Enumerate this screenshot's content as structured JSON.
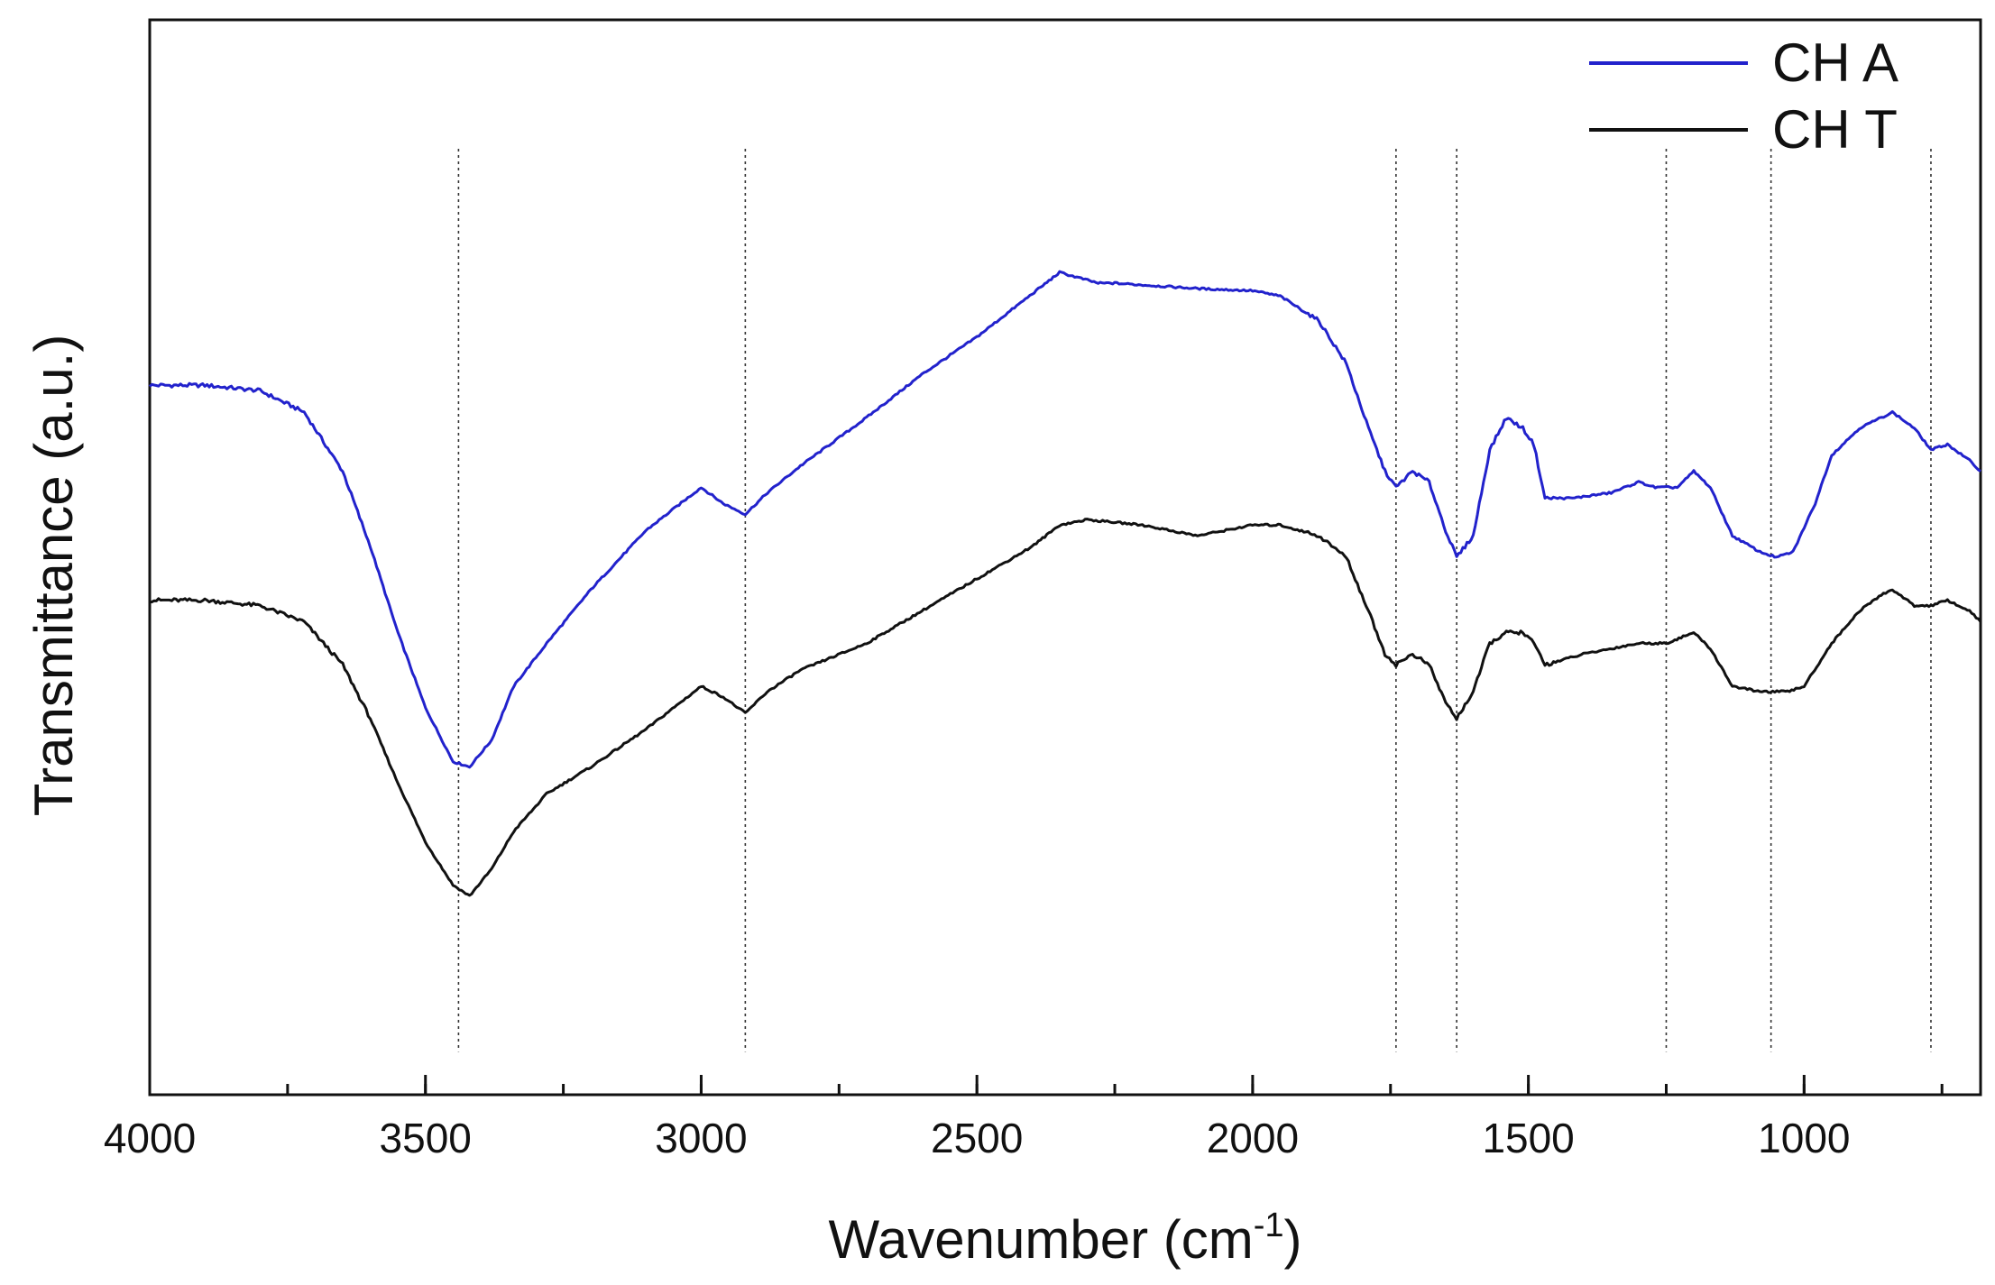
{
  "chart_data": {
    "type": "line",
    "title": "",
    "xlabel": "Wavenumber (cm",
    "xlabel_superscript": "-1",
    "xlabel_suffix": ")",
    "ylabel": "Transmittance (a.u.)",
    "xlim": [
      4000,
      680
    ],
    "ylim": [
      0,
      100
    ],
    "x_reversed": true,
    "grid": false,
    "legend_position": "top-right",
    "x_ticks": [
      {
        "value": 4000,
        "label": "4000"
      },
      {
        "value": 3500,
        "label": "3500"
      },
      {
        "value": 3000,
        "label": "3000"
      },
      {
        "value": 2500,
        "label": "2500"
      },
      {
        "value": 2000,
        "label": "2000"
      },
      {
        "value": 1500,
        "label": "1500"
      },
      {
        "value": 1000,
        "label": "1000"
      }
    ],
    "x_minor_step": 250,
    "peak_markers": [
      3440,
      2920,
      1740,
      1630,
      1250,
      1060,
      770
    ],
    "series": [
      {
        "name": "CH A",
        "color": "#2222cc",
        "points": [
          [
            4000,
            66
          ],
          [
            3900,
            66
          ],
          [
            3800,
            65.5
          ],
          [
            3720,
            63.5
          ],
          [
            3650,
            58
          ],
          [
            3600,
            51
          ],
          [
            3550,
            43
          ],
          [
            3500,
            36
          ],
          [
            3450,
            31
          ],
          [
            3420,
            30.5
          ],
          [
            3380,
            33
          ],
          [
            3340,
            38
          ],
          [
            3280,
            42
          ],
          [
            3200,
            47
          ],
          [
            3100,
            52.5
          ],
          [
            3000,
            56.5
          ],
          [
            2960,
            55
          ],
          [
            2920,
            54
          ],
          [
            2880,
            56
          ],
          [
            2820,
            58.5
          ],
          [
            2700,
            63
          ],
          [
            2600,
            67
          ],
          [
            2500,
            70.5
          ],
          [
            2400,
            74.5
          ],
          [
            2350,
            76.5
          ],
          [
            2280,
            75.5
          ],
          [
            2250,
            75.5
          ],
          [
            2100,
            75
          ],
          [
            2000,
            74.8
          ],
          [
            1950,
            74.3
          ],
          [
            1880,
            72
          ],
          [
            1830,
            68
          ],
          [
            1790,
            62
          ],
          [
            1760,
            58
          ],
          [
            1740,
            56.5
          ],
          [
            1710,
            58
          ],
          [
            1680,
            57
          ],
          [
            1650,
            52.5
          ],
          [
            1630,
            50
          ],
          [
            1600,
            52
          ],
          [
            1570,
            60
          ],
          [
            1540,
            63
          ],
          [
            1510,
            62
          ],
          [
            1490,
            60.5
          ],
          [
            1470,
            55.5
          ],
          [
            1420,
            55.5
          ],
          [
            1350,
            56
          ],
          [
            1300,
            57
          ],
          [
            1270,
            56.5
          ],
          [
            1230,
            56.5
          ],
          [
            1200,
            58
          ],
          [
            1170,
            56.5
          ],
          [
            1130,
            52
          ],
          [
            1080,
            50.5
          ],
          [
            1050,
            50
          ],
          [
            1020,
            50.5
          ],
          [
            980,
            55
          ],
          [
            950,
            59.5
          ],
          [
            900,
            62
          ],
          [
            860,
            63
          ],
          [
            840,
            63.5
          ],
          [
            800,
            62
          ],
          [
            770,
            60
          ],
          [
            740,
            60.5
          ],
          [
            700,
            59
          ],
          [
            680,
            58
          ]
        ]
      },
      {
        "name": "CH T",
        "color": "#111111",
        "points": [
          [
            4000,
            46
          ],
          [
            3900,
            46
          ],
          [
            3800,
            45.5
          ],
          [
            3720,
            44
          ],
          [
            3650,
            40
          ],
          [
            3600,
            35
          ],
          [
            3550,
            29
          ],
          [
            3500,
            23.5
          ],
          [
            3450,
            19.5
          ],
          [
            3420,
            18.5
          ],
          [
            3380,
            21
          ],
          [
            3340,
            24.5
          ],
          [
            3280,
            28
          ],
          [
            3200,
            30.5
          ],
          [
            3100,
            34
          ],
          [
            3000,
            38
          ],
          [
            2960,
            37
          ],
          [
            2920,
            35.5
          ],
          [
            2880,
            37.5
          ],
          [
            2820,
            39.5
          ],
          [
            2700,
            42
          ],
          [
            2600,
            45
          ],
          [
            2500,
            48
          ],
          [
            2400,
            51
          ],
          [
            2350,
            53
          ],
          [
            2300,
            53.5
          ],
          [
            2200,
            53
          ],
          [
            2100,
            52
          ],
          [
            2000,
            53
          ],
          [
            1950,
            53
          ],
          [
            1880,
            52
          ],
          [
            1830,
            50
          ],
          [
            1790,
            45
          ],
          [
            1760,
            41
          ],
          [
            1740,
            40
          ],
          [
            1710,
            41
          ],
          [
            1680,
            40
          ],
          [
            1650,
            36.5
          ],
          [
            1630,
            35
          ],
          [
            1600,
            37.5
          ],
          [
            1570,
            42
          ],
          [
            1540,
            43
          ],
          [
            1510,
            43
          ],
          [
            1490,
            42
          ],
          [
            1470,
            40
          ],
          [
            1400,
            41
          ],
          [
            1300,
            42
          ],
          [
            1250,
            42
          ],
          [
            1200,
            43
          ],
          [
            1170,
            41.5
          ],
          [
            1130,
            38
          ],
          [
            1080,
            37.5
          ],
          [
            1030,
            37.5
          ],
          [
            1000,
            38
          ],
          [
            950,
            42
          ],
          [
            900,
            45
          ],
          [
            860,
            46.5
          ],
          [
            840,
            47
          ],
          [
            800,
            45.5
          ],
          [
            770,
            45.5
          ],
          [
            740,
            46
          ],
          [
            700,
            45
          ],
          [
            680,
            44
          ]
        ]
      }
    ]
  }
}
